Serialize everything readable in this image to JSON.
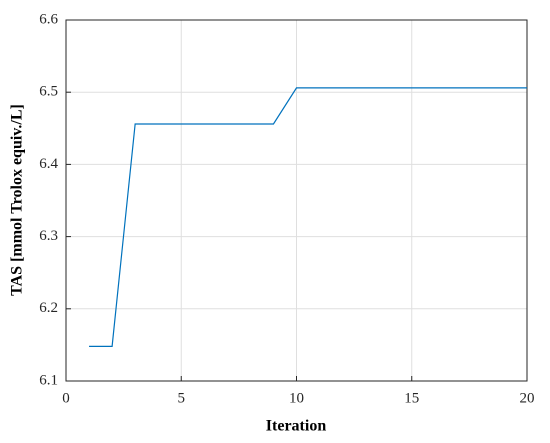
{
  "chart_data": {
    "type": "line",
    "x_label": "Iteration",
    "y_label": "TAS [mmol Trolox equiv./L]",
    "x": [
      1,
      2,
      3,
      4,
      5,
      6,
      7,
      8,
      9,
      10,
      11,
      12,
      13,
      14,
      15,
      16,
      17,
      18,
      19,
      20
    ],
    "series": [
      {
        "color": "#0072bd",
        "values": [
          6.148,
          6.148,
          6.456,
          6.456,
          6.456,
          6.456,
          6.456,
          6.456,
          6.456,
          6.506,
          6.506,
          6.506,
          6.506,
          6.506,
          6.506,
          6.506,
          6.506,
          6.506,
          6.506,
          6.506
        ]
      }
    ],
    "xlim": [
      0,
      20
    ],
    "xticks": [
      0,
      5,
      10,
      15,
      20
    ],
    "ylim": [
      6.1,
      6.6
    ],
    "yticks": [
      6.1,
      6.2,
      6.3,
      6.4,
      6.5,
      6.6
    ],
    "grid": true
  }
}
